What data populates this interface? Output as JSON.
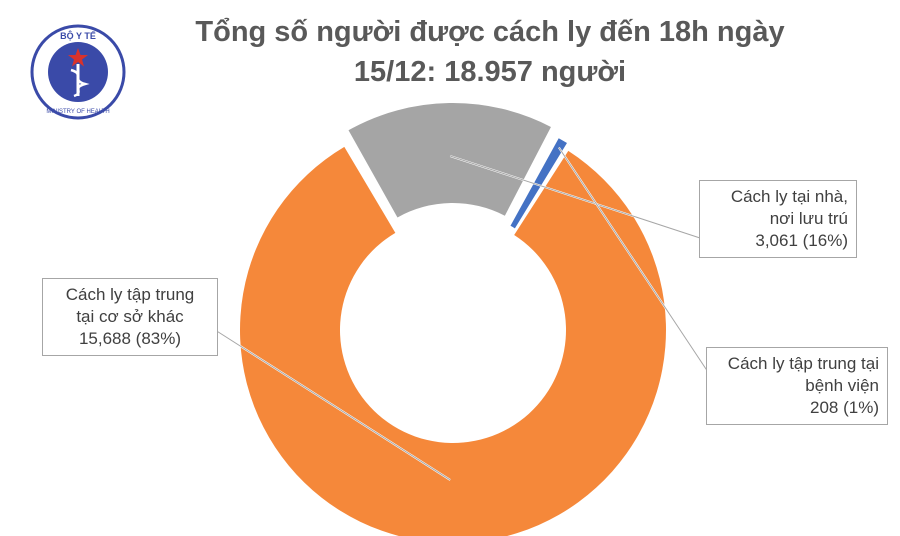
{
  "logo": {
    "top_text": "BỘ Y TẾ",
    "bottom_text": "MINISTRY OF HEALTH",
    "colors": {
      "ring": "#3a4aa8",
      "star": "#d9322b"
    }
  },
  "chart_data": {
    "type": "pie",
    "donut": true,
    "title_line1": "Tổng số người được cách ly đến 18h ngày",
    "title_line2": "15/12: 18.957 người",
    "series": [
      {
        "name_lines": [
          "Cách ly tập trung",
          "tại cơ sở khác"
        ],
        "value": 15688,
        "value_label": "15,688 (83%)",
        "percent": 83,
        "color": "#f5883a"
      },
      {
        "name_lines": [
          "Cách ly tại nhà,",
          "nơi lưu trú"
        ],
        "value": 3061,
        "value_label": "3,061 (16%)",
        "percent": 16,
        "color": "#a5a5a5"
      },
      {
        "name_lines": [
          "Cách ly tập trung tại",
          "bệnh viện"
        ],
        "value": 208,
        "value_label": "208 (1%)",
        "percent": 1,
        "color": "#4472c4"
      }
    ]
  }
}
